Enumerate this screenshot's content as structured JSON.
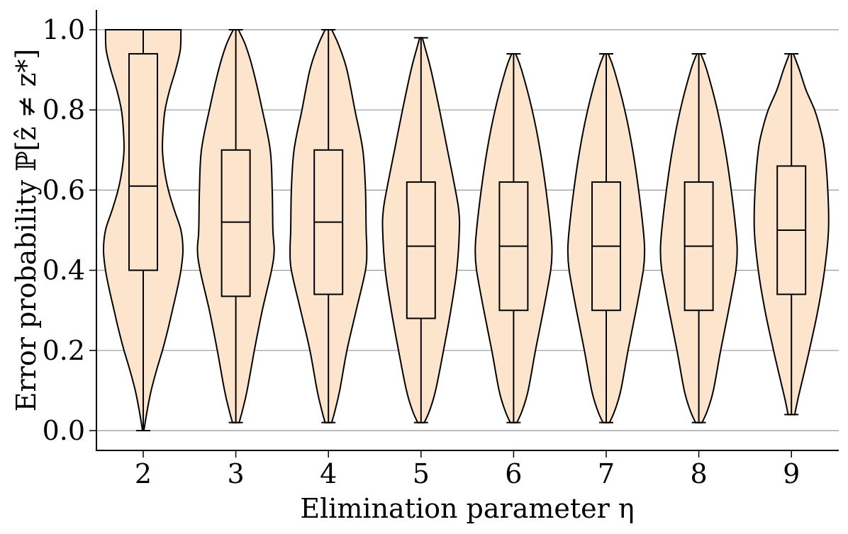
{
  "chart_data": {
    "type": "violin",
    "title": "",
    "xlabel": "Elimination parameter η",
    "ylabel": "Error probability ℙ[ẑ ≠ z*]",
    "categories": [
      "2",
      "3",
      "4",
      "5",
      "6",
      "7",
      "8",
      "9"
    ],
    "ylim": [
      -0.05,
      1.05
    ],
    "yticks": [
      0.0,
      0.2,
      0.4,
      0.6,
      0.8,
      1.0
    ],
    "ytick_labels": [
      "0.0",
      "0.2",
      "0.4",
      "0.6",
      "0.8",
      "1.0"
    ],
    "grid": "horizontal",
    "colors": {
      "violin_fill": "#fde4cc",
      "stroke": "#000000",
      "grid": "#999999"
    },
    "boxes": [
      {
        "eta": "2",
        "min": 0.0,
        "q1": 0.4,
        "median": 0.61,
        "q3": 0.94,
        "max": 1.0
      },
      {
        "eta": "3",
        "min": 0.02,
        "q1": 0.335,
        "median": 0.52,
        "q3": 0.7,
        "max": 1.0
      },
      {
        "eta": "4",
        "min": 0.02,
        "q1": 0.34,
        "median": 0.52,
        "q3": 0.7,
        "max": 1.0
      },
      {
        "eta": "5",
        "min": 0.02,
        "q1": 0.28,
        "median": 0.46,
        "q3": 0.62,
        "max": 0.98
      },
      {
        "eta": "6",
        "min": 0.02,
        "q1": 0.3,
        "median": 0.46,
        "q3": 0.62,
        "max": 0.94
      },
      {
        "eta": "7",
        "min": 0.02,
        "q1": 0.3,
        "median": 0.46,
        "q3": 0.62,
        "max": 0.94
      },
      {
        "eta": "8",
        "min": 0.02,
        "q1": 0.3,
        "median": 0.46,
        "q3": 0.62,
        "max": 0.94
      },
      {
        "eta": "9",
        "min": 0.04,
        "q1": 0.34,
        "median": 0.5,
        "q3": 0.66,
        "max": 0.94
      }
    ],
    "violin_profiles": [
      {
        "eta": "2",
        "profile": [
          [
            0.0,
            0.01
          ],
          [
            0.05,
            0.06
          ],
          [
            0.1,
            0.12
          ],
          [
            0.15,
            0.2
          ],
          [
            0.2,
            0.29
          ],
          [
            0.25,
            0.37
          ],
          [
            0.3,
            0.44
          ],
          [
            0.35,
            0.51
          ],
          [
            0.4,
            0.57
          ],
          [
            0.45,
            0.6
          ],
          [
            0.5,
            0.57
          ],
          [
            0.55,
            0.47
          ],
          [
            0.6,
            0.38
          ],
          [
            0.65,
            0.32
          ],
          [
            0.7,
            0.29
          ],
          [
            0.75,
            0.3
          ],
          [
            0.8,
            0.33
          ],
          [
            0.85,
            0.4
          ],
          [
            0.9,
            0.49
          ],
          [
            0.95,
            0.56
          ],
          [
            1.0,
            0.57
          ]
        ]
      },
      {
        "eta": "3",
        "profile": [
          [
            0.02,
            0.05
          ],
          [
            0.05,
            0.1
          ],
          [
            0.1,
            0.17
          ],
          [
            0.2,
            0.28
          ],
          [
            0.3,
            0.4
          ],
          [
            0.4,
            0.54
          ],
          [
            0.45,
            0.58
          ],
          [
            0.5,
            0.56
          ],
          [
            0.6,
            0.55
          ],
          [
            0.7,
            0.52
          ],
          [
            0.8,
            0.4
          ],
          [
            0.9,
            0.26
          ],
          [
            0.96,
            0.15
          ],
          [
            1.0,
            0.04
          ]
        ]
      },
      {
        "eta": "4",
        "profile": [
          [
            0.02,
            0.05
          ],
          [
            0.05,
            0.1
          ],
          [
            0.1,
            0.17
          ],
          [
            0.2,
            0.28
          ],
          [
            0.3,
            0.42
          ],
          [
            0.4,
            0.56
          ],
          [
            0.45,
            0.58
          ],
          [
            0.5,
            0.57
          ],
          [
            0.6,
            0.56
          ],
          [
            0.7,
            0.52
          ],
          [
            0.8,
            0.4
          ],
          [
            0.9,
            0.28
          ],
          [
            0.96,
            0.16
          ],
          [
            1.0,
            0.05
          ]
        ]
      },
      {
        "eta": "5",
        "profile": [
          [
            0.02,
            0.05
          ],
          [
            0.05,
            0.13
          ],
          [
            0.1,
            0.22
          ],
          [
            0.2,
            0.34
          ],
          [
            0.3,
            0.45
          ],
          [
            0.4,
            0.54
          ],
          [
            0.5,
            0.58
          ],
          [
            0.55,
            0.57
          ],
          [
            0.6,
            0.52
          ],
          [
            0.7,
            0.4
          ],
          [
            0.8,
            0.28
          ],
          [
            0.9,
            0.15
          ],
          [
            0.95,
            0.07
          ],
          [
            0.98,
            0.02
          ]
        ]
      },
      {
        "eta": "6",
        "profile": [
          [
            0.02,
            0.05
          ],
          [
            0.05,
            0.13
          ],
          [
            0.1,
            0.22
          ],
          [
            0.2,
            0.33
          ],
          [
            0.3,
            0.45
          ],
          [
            0.4,
            0.56
          ],
          [
            0.45,
            0.58
          ],
          [
            0.5,
            0.56
          ],
          [
            0.6,
            0.49
          ],
          [
            0.7,
            0.4
          ],
          [
            0.8,
            0.28
          ],
          [
            0.9,
            0.12
          ],
          [
            0.94,
            0.03
          ]
        ]
      },
      {
        "eta": "7",
        "profile": [
          [
            0.02,
            0.05
          ],
          [
            0.05,
            0.13
          ],
          [
            0.1,
            0.22
          ],
          [
            0.2,
            0.33
          ],
          [
            0.3,
            0.45
          ],
          [
            0.4,
            0.56
          ],
          [
            0.45,
            0.58
          ],
          [
            0.5,
            0.56
          ],
          [
            0.6,
            0.49
          ],
          [
            0.7,
            0.4
          ],
          [
            0.8,
            0.28
          ],
          [
            0.9,
            0.12
          ],
          [
            0.94,
            0.03
          ]
        ]
      },
      {
        "eta": "8",
        "profile": [
          [
            0.02,
            0.05
          ],
          [
            0.05,
            0.13
          ],
          [
            0.1,
            0.22
          ],
          [
            0.2,
            0.33
          ],
          [
            0.3,
            0.45
          ],
          [
            0.4,
            0.56
          ],
          [
            0.45,
            0.58
          ],
          [
            0.5,
            0.56
          ],
          [
            0.6,
            0.49
          ],
          [
            0.7,
            0.4
          ],
          [
            0.8,
            0.28
          ],
          [
            0.9,
            0.12
          ],
          [
            0.94,
            0.03
          ]
        ]
      },
      {
        "eta": "9",
        "profile": [
          [
            0.04,
            0.05
          ],
          [
            0.08,
            0.1
          ],
          [
            0.15,
            0.2
          ],
          [
            0.2,
            0.27
          ],
          [
            0.3,
            0.4
          ],
          [
            0.4,
            0.5
          ],
          [
            0.5,
            0.56
          ],
          [
            0.6,
            0.55
          ],
          [
            0.7,
            0.5
          ],
          [
            0.75,
            0.44
          ],
          [
            0.8,
            0.35
          ],
          [
            0.85,
            0.22
          ],
          [
            0.9,
            0.12
          ],
          [
            0.94,
            0.03
          ]
        ]
      }
    ]
  }
}
